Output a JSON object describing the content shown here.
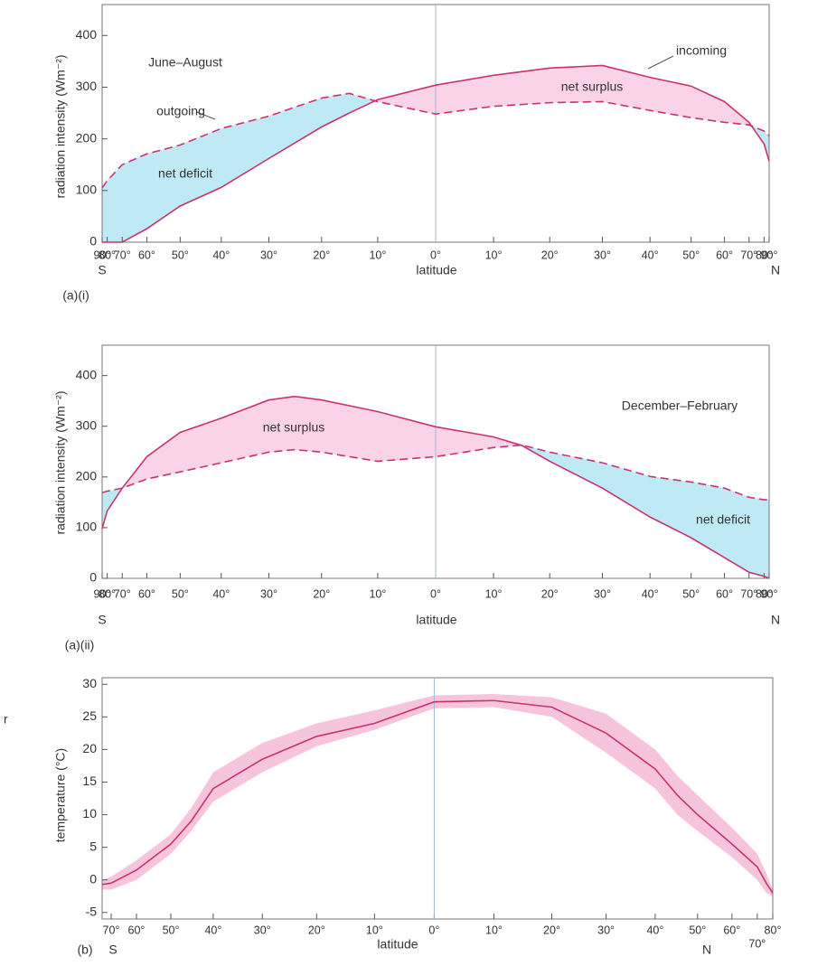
{
  "margin_text": "r",
  "chart_data": [
    {
      "type": "line",
      "panel_label": "(a)(i)",
      "season_label": "June–August",
      "xlabel": "latitude",
      "ylabel": "radiation intensity (Wm⁻²)",
      "hemisphere_labels": [
        "S",
        "N"
      ],
      "annotations": [
        "net deficit",
        "net surplus"
      ],
      "xscale": "sine",
      "xlim": [
        -90,
        90
      ],
      "ylim": [
        0,
        460
      ],
      "equator_line": true,
      "xticks": [
        {
          "value": -90,
          "label": "90°"
        },
        {
          "value": -80,
          "label": "80°"
        },
        {
          "value": -70,
          "label": "70°"
        },
        {
          "value": -60,
          "label": "60°"
        },
        {
          "value": -50,
          "label": "50°"
        },
        {
          "value": -40,
          "label": "40°"
        },
        {
          "value": -30,
          "label": "30°"
        },
        {
          "value": -20,
          "label": "20°"
        },
        {
          "value": -10,
          "label": "10°"
        },
        {
          "value": 0,
          "label": "0°"
        },
        {
          "value": 10,
          "label": "10°"
        },
        {
          "value": 20,
          "label": "20°"
        },
        {
          "value": 30,
          "label": "30°"
        },
        {
          "value": 40,
          "label": "40°"
        },
        {
          "value": 50,
          "label": "50°"
        },
        {
          "value": 60,
          "label": "60°"
        },
        {
          "value": 70,
          "label": "70°"
        },
        {
          "value": 80,
          "label": "80°"
        },
        {
          "value": 90,
          "label": "90°"
        }
      ],
      "yticks": [
        0,
        100,
        200,
        300,
        400
      ],
      "fill_colors": {
        "surplus": "#fbd3e8",
        "deficit": "#bfe9f4"
      },
      "x": [
        -90,
        -80,
        -70,
        -60,
        -50,
        -40,
        -30,
        -20,
        -15,
        -10,
        0,
        10,
        20,
        30,
        40,
        50,
        60,
        70,
        80,
        90
      ],
      "series": [
        {
          "name": "incoming",
          "color": "#c8336e",
          "style": "solid",
          "values": [
            0,
            0,
            0,
            26,
            70,
            106,
            162,
            223,
            250,
            276,
            304,
            323,
            337,
            342,
            319,
            302,
            272,
            232,
            190,
            157
          ]
        },
        {
          "name": "outgoing",
          "color": "#c8336e",
          "style": "dashed",
          "values": [
            105,
            119,
            150,
            171,
            188,
            220,
            244,
            279,
            288,
            272,
            248,
            263,
            270,
            272,
            255,
            241,
            232,
            227,
            215,
            206
          ]
        }
      ]
    },
    {
      "type": "line",
      "panel_label": "(a)(ii)",
      "season_label": "December–February",
      "xlabel": "latitude",
      "ylabel": "radiation intensity (Wm⁻²)",
      "hemisphere_labels": [
        "S",
        "N"
      ],
      "annotations": [
        "net surplus",
        "net deficit"
      ],
      "xscale": "sine",
      "xlim": [
        -90,
        90
      ],
      "ylim": [
        0,
        460
      ],
      "equator_line": true,
      "xticks": [
        {
          "value": -90,
          "label": "90°"
        },
        {
          "value": -80,
          "label": "80°"
        },
        {
          "value": -70,
          "label": "70°"
        },
        {
          "value": -60,
          "label": "60°"
        },
        {
          "value": -50,
          "label": "50°"
        },
        {
          "value": -40,
          "label": "40°"
        },
        {
          "value": -30,
          "label": "30°"
        },
        {
          "value": -20,
          "label": "20°"
        },
        {
          "value": -10,
          "label": "10°"
        },
        {
          "value": 0,
          "label": "0°"
        },
        {
          "value": 10,
          "label": "10°"
        },
        {
          "value": 20,
          "label": "20°"
        },
        {
          "value": 30,
          "label": "30°"
        },
        {
          "value": 40,
          "label": "40°"
        },
        {
          "value": 50,
          "label": "50°"
        },
        {
          "value": 60,
          "label": "60°"
        },
        {
          "value": 70,
          "label": "70°"
        },
        {
          "value": 80,
          "label": "80°"
        },
        {
          "value": 90,
          "label": "90°"
        }
      ],
      "yticks": [
        0,
        100,
        200,
        300,
        400
      ],
      "fill_colors": {
        "surplus": "#fbd3e8",
        "deficit": "#bfe9f4"
      },
      "x": [
        -90,
        -80,
        -70,
        -60,
        -50,
        -40,
        -30,
        -25,
        -20,
        -10,
        0,
        10,
        15,
        20,
        30,
        40,
        50,
        60,
        70,
        80,
        90
      ],
      "series": [
        {
          "color": "#c8336e",
          "style": "solid",
          "values": [
            98,
            133,
            178,
            240,
            288,
            316,
            352,
            359,
            352,
            329,
            299,
            279,
            262,
            231,
            178,
            121,
            80,
            41,
            12,
            4,
            0
          ]
        },
        {
          "color": "#c8336e",
          "style": "dashed",
          "values": [
            169,
            172,
            178,
            196,
            210,
            228,
            249,
            254,
            249,
            231,
            240,
            258,
            263,
            249,
            228,
            201,
            190,
            178,
            160,
            155,
            155
          ]
        }
      ]
    },
    {
      "type": "band-line",
      "panel_label": "(b)",
      "xlabel": "latitude",
      "ylabel": "temperature (°C)",
      "hemisphere_labels": [
        "S",
        "N"
      ],
      "xscale": "sine",
      "xlim": [
        -75,
        80
      ],
      "ylim": [
        -6,
        31
      ],
      "equator_line": true,
      "xticks": [
        {
          "value": -70,
          "label": "70°"
        },
        {
          "value": -60,
          "label": "60°"
        },
        {
          "value": -50,
          "label": "50°"
        },
        {
          "value": -40,
          "label": "40°"
        },
        {
          "value": -30,
          "label": "30°"
        },
        {
          "value": -20,
          "label": "20°"
        },
        {
          "value": -10,
          "label": "10°"
        },
        {
          "value": 0,
          "label": "0°"
        },
        {
          "value": 10,
          "label": "10°"
        },
        {
          "value": 20,
          "label": "20°"
        },
        {
          "value": 30,
          "label": "30°"
        },
        {
          "value": 40,
          "label": "40°"
        },
        {
          "value": 50,
          "label": "50°"
        },
        {
          "value": 60,
          "label": "60°"
        },
        {
          "value": 70,
          "label": "70°"
        },
        {
          "value": 80,
          "label": "80°"
        }
      ],
      "yticks": [
        -5,
        0,
        5,
        10,
        15,
        20,
        25,
        30
      ],
      "color": "#c8336e",
      "band_color": "#f6c4dd",
      "x": [
        -75,
        -70,
        -60,
        -50,
        -45,
        -40,
        -30,
        -20,
        -10,
        0,
        10,
        20,
        30,
        40,
        45,
        50,
        60,
        70,
        75,
        80
      ],
      "values": [
        -0.7,
        -0.5,
        1.5,
        5.5,
        9,
        14,
        18.5,
        22,
        24,
        27.3,
        27.5,
        26.5,
        22.5,
        17,
        13,
        10,
        5.5,
        2,
        -0.5,
        -2
      ],
      "upper": [
        0,
        0.5,
        3,
        7,
        11,
        16.5,
        21,
        24,
        26,
        28.3,
        28.5,
        28,
        25.5,
        20,
        16,
        13,
        8,
        4,
        1,
        -1.5
      ],
      "lower": [
        -1.5,
        -1.5,
        0,
        4,
        7.5,
        12,
        16.5,
        20.5,
        23,
        26.3,
        26.5,
        25,
        19.5,
        14,
        10,
        7.5,
        3.5,
        0,
        -2,
        -2.5
      ]
    }
  ]
}
